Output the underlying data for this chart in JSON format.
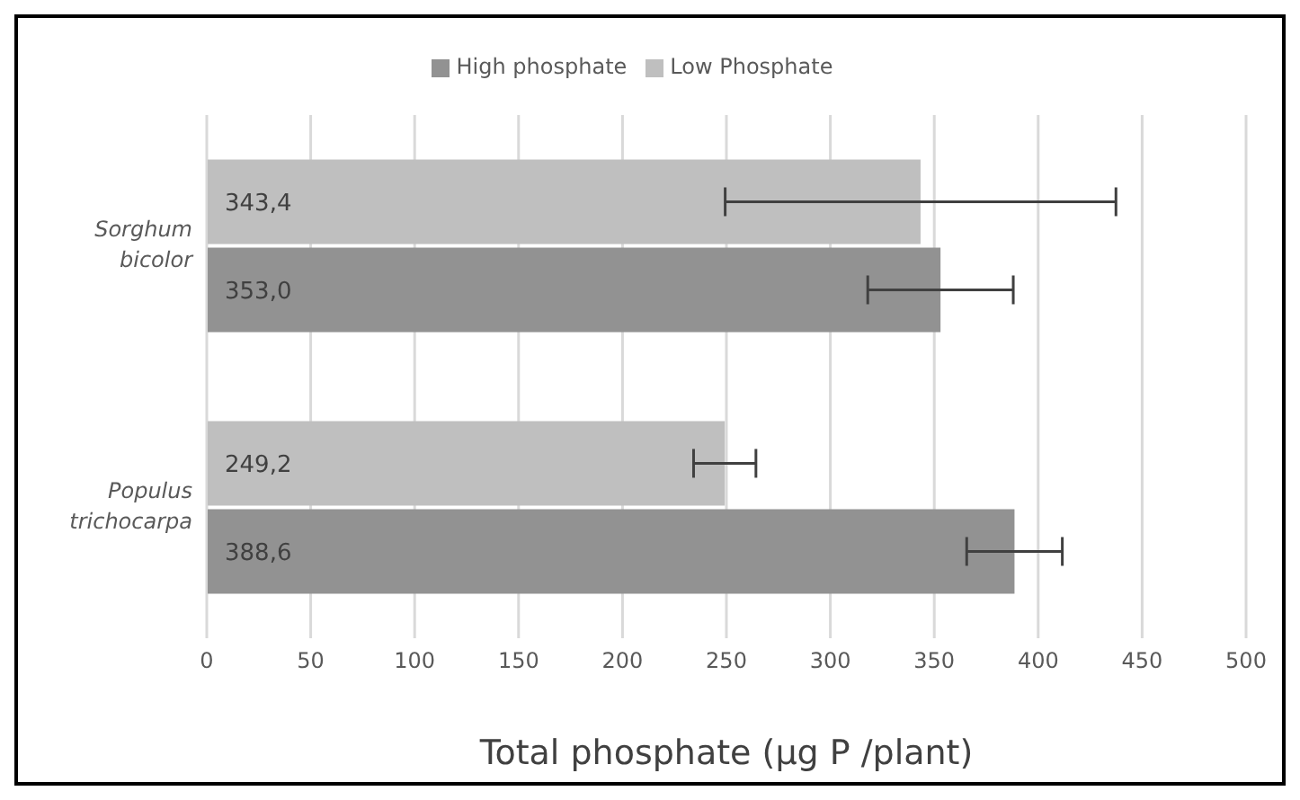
{
  "chart_data": {
    "type": "bar",
    "orientation": "horizontal",
    "xlabel": "Total phosphate (µg P /plant)",
    "categories": [
      "Sorghum bicolor",
      "Populus trichocarpa"
    ],
    "series": [
      {
        "name": "Low Phosphate",
        "color": "#bfbfbf",
        "values": [
          343.4,
          249.2
        ],
        "errors": [
          94,
          15
        ]
      },
      {
        "name": "High phosphate",
        "color": "#929292",
        "values": [
          353.0,
          388.6
        ],
        "errors": [
          35,
          23
        ]
      }
    ],
    "value_labels": [
      [
        "343,4",
        "249,2"
      ],
      [
        "353,0",
        "388,6"
      ]
    ],
    "xlim": [
      0,
      500
    ],
    "xticks": [
      0,
      50,
      100,
      150,
      200,
      250,
      300,
      350,
      400,
      450,
      500
    ],
    "grid": "x",
    "legend": "top"
  }
}
